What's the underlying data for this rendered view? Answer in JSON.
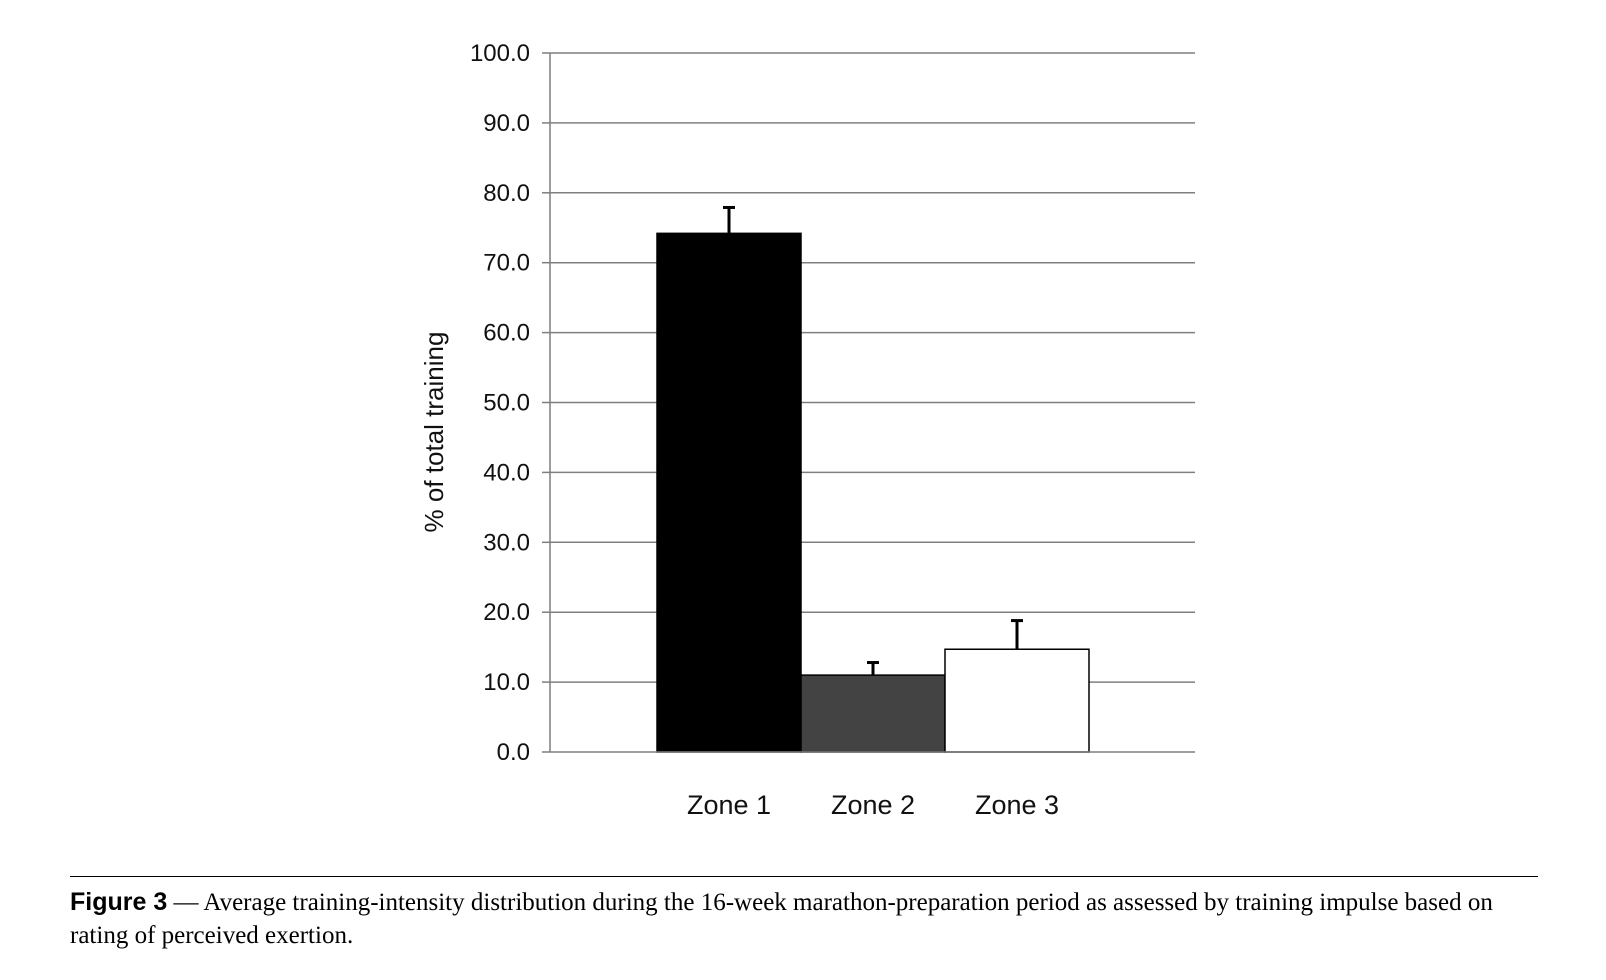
{
  "chart_data": {
    "type": "bar",
    "categories": [
      "Zone 1",
      "Zone 2",
      "Zone 3"
    ],
    "values": [
      74.2,
      11.0,
      14.7
    ],
    "error_upper": [
      3.7,
      1.8,
      4.1
    ],
    "colors": [
      "#000000",
      "#434343",
      "#ffffff"
    ],
    "ylabel": "% of total training",
    "xlabel": "",
    "title": "",
    "ylim": [
      0,
      100
    ],
    "yticks": [
      "0.0",
      "10.0",
      "20.0",
      "30.0",
      "40.0",
      "50.0",
      "60.0",
      "70.0",
      "80.0",
      "90.0",
      "100.0"
    ],
    "ytick_values": [
      0,
      10,
      20,
      30,
      40,
      50,
      60,
      70,
      80,
      90,
      100
    ],
    "grid": true
  },
  "caption": {
    "label": "Figure 3",
    "text": " — Average training-intensity distribution during the 16-week marathon-preparation period as assessed by training impulse based on rating of perceived exertion."
  }
}
